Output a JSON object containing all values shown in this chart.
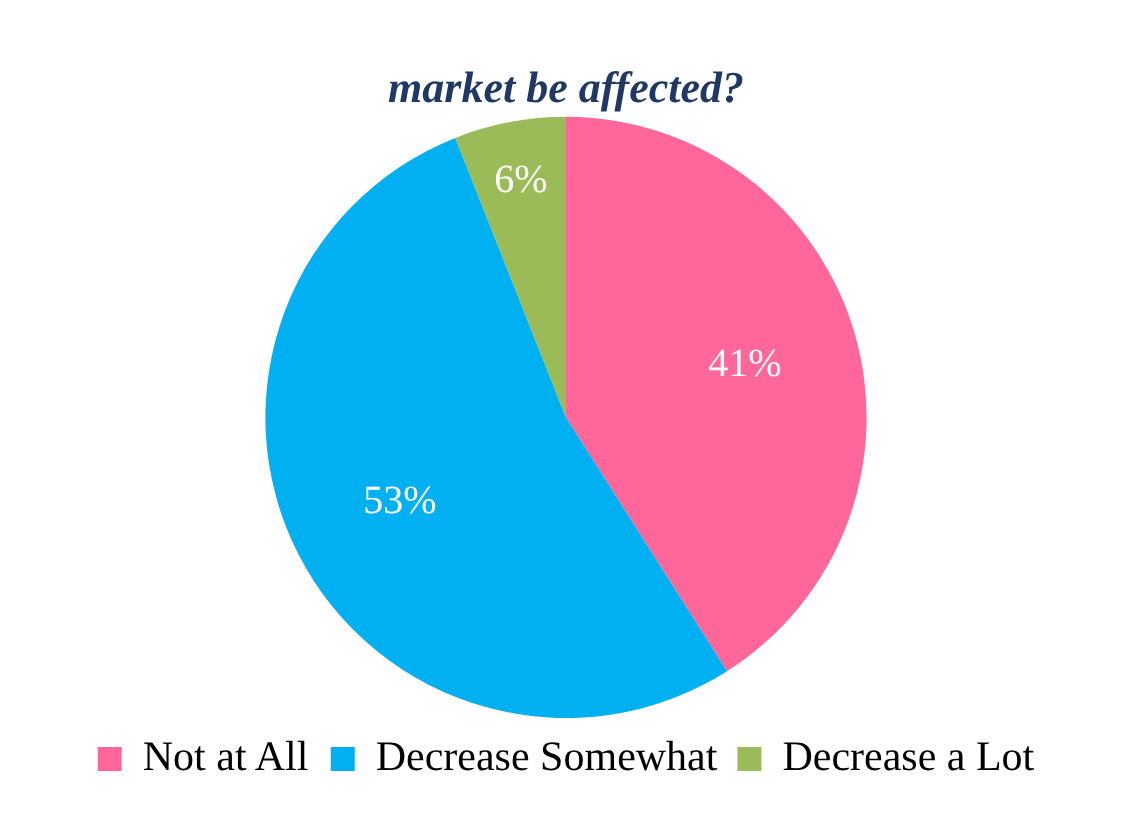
{
  "chart_data": {
    "type": "pie",
    "title": "market be affected?",
    "categories": [
      "Not at All",
      "Decrease Somewhat",
      "Decrease a Lot"
    ],
    "values": [
      41,
      53,
      6
    ],
    "value_labels": [
      "41%",
      "53%",
      "6%"
    ],
    "colors": [
      "#ff6699",
      "#00b0f0",
      "#9bbb59"
    ],
    "legend": "bottom"
  }
}
